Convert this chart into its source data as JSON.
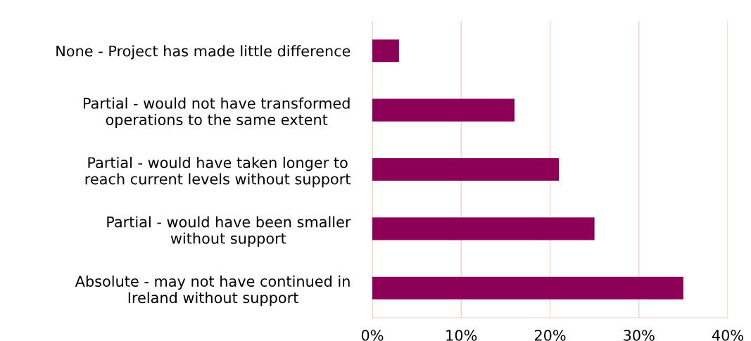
{
  "chart_data": {
    "type": "bar",
    "orientation": "horizontal",
    "categories": [
      "None - Project has made little difference",
      "Partial - would not have transformed\noperations to the same extent",
      "Partial - would have taken longer to\nreach current levels without support",
      "Partial - would have been smaller\nwithout support",
      "Absolute - may not have continued in\nIreland without support"
    ],
    "values": [
      3,
      16,
      21,
      25,
      35
    ],
    "color": "#8c0057",
    "xlim": [
      0,
      40
    ],
    "xticks": [
      {
        "value": 0,
        "label": "0%"
      },
      {
        "value": 10,
        "label": "10%"
      },
      {
        "value": 20,
        "label": "20%"
      },
      {
        "value": 30,
        "label": "30%"
      },
      {
        "value": 40,
        "label": "40%"
      }
    ],
    "grid": "x"
  }
}
